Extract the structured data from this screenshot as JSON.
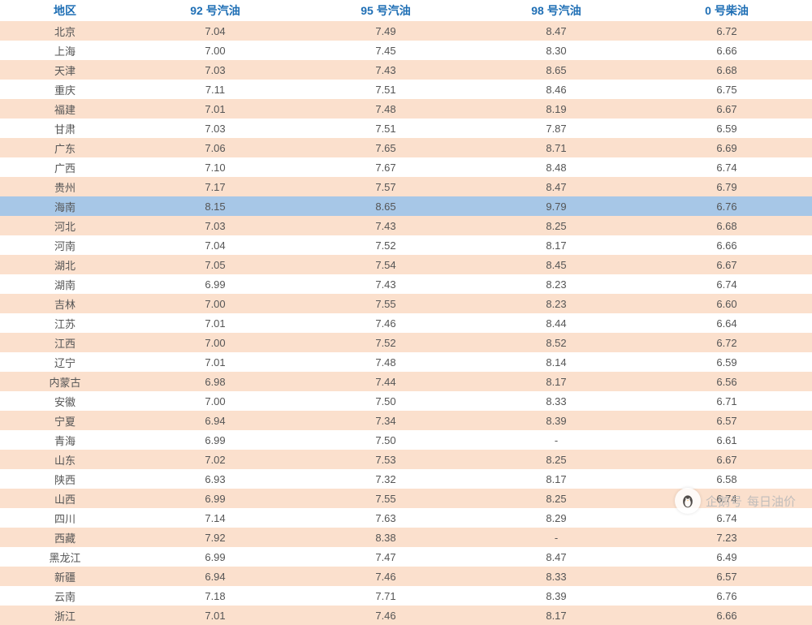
{
  "table": {
    "type": "table",
    "header_color": "#1f6fb5",
    "header_bg": "#ffffff",
    "header_fontsize": 14,
    "header_fontweight": "bold",
    "cell_fontsize": 13,
    "cell_color": "#555555",
    "row_bg_odd": "#fbe0cd",
    "row_bg_even": "#ffffff",
    "highlight_bg": "#a7c7e7",
    "highlight_row_index": 9,
    "column_widths": [
      "16%",
      "21%",
      "21%",
      "21%",
      "21%"
    ],
    "columns": [
      "地区",
      "92 号汽油",
      "95 号汽油",
      "98 号汽油",
      "0 号柴油"
    ],
    "rows": [
      [
        "北京",
        "7.04",
        "7.49",
        "8.47",
        "6.72"
      ],
      [
        "上海",
        "7.00",
        "7.45",
        "8.30",
        "6.66"
      ],
      [
        "天津",
        "7.03",
        "7.43",
        "8.65",
        "6.68"
      ],
      [
        "重庆",
        "7.11",
        "7.51",
        "8.46",
        "6.75"
      ],
      [
        "福建",
        "7.01",
        "7.48",
        "8.19",
        "6.67"
      ],
      [
        "甘肃",
        "7.03",
        "7.51",
        "7.87",
        "6.59"
      ],
      [
        "广东",
        "7.06",
        "7.65",
        "8.71",
        "6.69"
      ],
      [
        "广西",
        "7.10",
        "7.67",
        "8.48",
        "6.74"
      ],
      [
        "贵州",
        "7.17",
        "7.57",
        "8.47",
        "6.79"
      ],
      [
        "海南",
        "8.15",
        "8.65",
        "9.79",
        "6.76"
      ],
      [
        "河北",
        "7.03",
        "7.43",
        "8.25",
        "6.68"
      ],
      [
        "河南",
        "7.04",
        "7.52",
        "8.17",
        "6.66"
      ],
      [
        "湖北",
        "7.05",
        "7.54",
        "8.45",
        "6.67"
      ],
      [
        "湖南",
        "6.99",
        "7.43",
        "8.23",
        "6.74"
      ],
      [
        "吉林",
        "7.00",
        "7.55",
        "8.23",
        "6.60"
      ],
      [
        "江苏",
        "7.01",
        "7.46",
        "8.44",
        "6.64"
      ],
      [
        "江西",
        "7.00",
        "7.52",
        "8.52",
        "6.72"
      ],
      [
        "辽宁",
        "7.01",
        "7.48",
        "8.14",
        "6.59"
      ],
      [
        "内蒙古",
        "6.98",
        "7.44",
        "8.17",
        "6.56"
      ],
      [
        "安徽",
        "7.00",
        "7.50",
        "8.33",
        "6.71"
      ],
      [
        "宁夏",
        "6.94",
        "7.34",
        "8.39",
        "6.57"
      ],
      [
        "青海",
        "6.99",
        "7.50",
        "-",
        "6.61"
      ],
      [
        "山东",
        "7.02",
        "7.53",
        "8.25",
        "6.67"
      ],
      [
        "陕西",
        "6.93",
        "7.32",
        "8.17",
        "6.58"
      ],
      [
        "山西",
        "6.99",
        "7.55",
        "8.25",
        "6.74"
      ],
      [
        "四川",
        "7.14",
        "7.63",
        "8.29",
        "6.74"
      ],
      [
        "西藏",
        "7.92",
        "8.38",
        "-",
        "7.23"
      ],
      [
        "黑龙江",
        "6.99",
        "7.47",
        "8.47",
        "6.49"
      ],
      [
        "新疆",
        "6.94",
        "7.46",
        "8.33",
        "6.57"
      ],
      [
        "云南",
        "7.18",
        "7.71",
        "8.39",
        "6.76"
      ],
      [
        "浙江",
        "7.01",
        "7.46",
        "8.17",
        "6.66"
      ]
    ]
  },
  "watermark": {
    "source_label": "企鹅号",
    "brand_label": "每日油价",
    "text_color": "#b8b8b8",
    "logo_bg": "#ffffff",
    "penguin_color": "#333333"
  }
}
